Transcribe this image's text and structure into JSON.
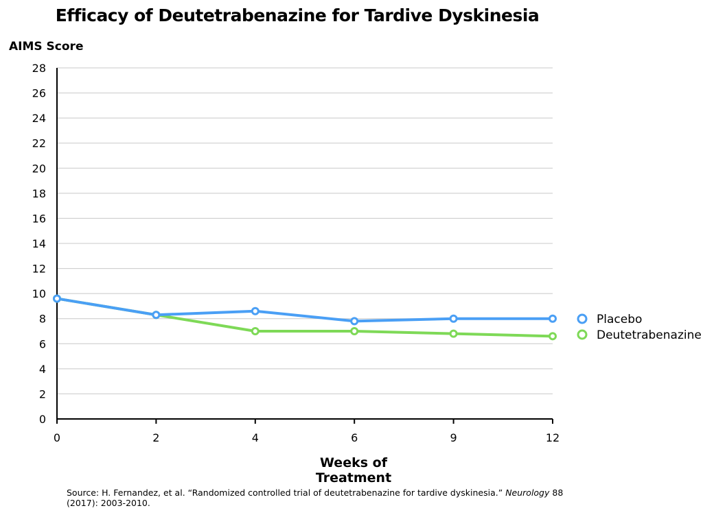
{
  "chart_data": {
    "type": "line",
    "title": "Efficacy of Deutetrabenazine for Tardive Dyskinesia",
    "ylabel": "AIMS Score",
    "xlabel": "Weeks of Treatment",
    "categories": [
      "0",
      "2",
      "4",
      "6",
      "9",
      "12"
    ],
    "ylim": [
      0,
      28
    ],
    "yticks": [
      "0",
      "2",
      "4",
      "6",
      "8",
      "10",
      "12",
      "14",
      "16",
      "18",
      "20",
      "22",
      "24",
      "26",
      "28"
    ],
    "grid": true,
    "legend_position": "right",
    "series": [
      {
        "name": "Placebo",
        "color": "#4a9ff5",
        "values": [
          9.6,
          8.3,
          8.6,
          7.8,
          8.0,
          8.0
        ]
      },
      {
        "name": "Deutetrabenazine",
        "color": "#7ed957",
        "values": [
          9.6,
          8.3,
          7.0,
          7.0,
          6.8,
          6.6
        ]
      }
    ]
  },
  "source": {
    "prefix": "Source: H. Fernandez, et al. “Randomized controlled trial of deutetrabenazine for tardive dyskinesia.”",
    "journal": "Neurology",
    "suffix": "88 (2017): 2003-2010."
  }
}
